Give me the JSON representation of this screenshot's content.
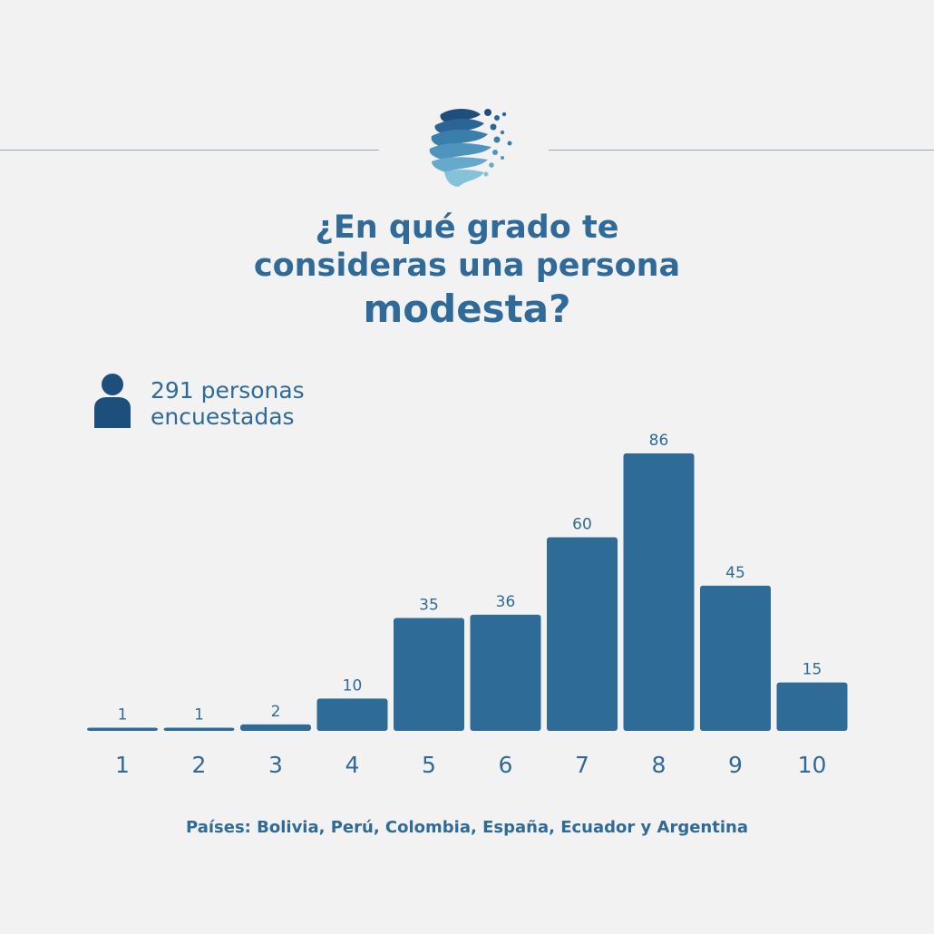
{
  "title": {
    "line1": "¿En qué grado te",
    "line2": "consideras una persona",
    "line3": "modesta?"
  },
  "respondents": {
    "line1": "291 personas",
    "line2": "encuestadas",
    "icon": "person-icon"
  },
  "countries": "Países: Bolivia, Perú, Colombia, España, Ecuador y Argentina",
  "colors": {
    "bar": "#2e6b97",
    "text": "#2f6a98",
    "icon": "#1d4f7d",
    "background": "#f2f2f2"
  },
  "chart_data": {
    "type": "bar",
    "categories": [
      "1",
      "2",
      "3",
      "4",
      "5",
      "6",
      "7",
      "8",
      "9",
      "10"
    ],
    "values": [
      1,
      1,
      2,
      10,
      35,
      36,
      60,
      86,
      45,
      15
    ],
    "data_labels": [
      "1",
      "1",
      "2",
      "10",
      "35",
      "36",
      "60",
      "86",
      "45",
      "15"
    ],
    "title": "¿En qué grado te consideras una persona modesta?",
    "xlabel": "",
    "ylabel": "",
    "ylim": [
      0,
      86
    ],
    "grid": false,
    "legend": "none"
  }
}
